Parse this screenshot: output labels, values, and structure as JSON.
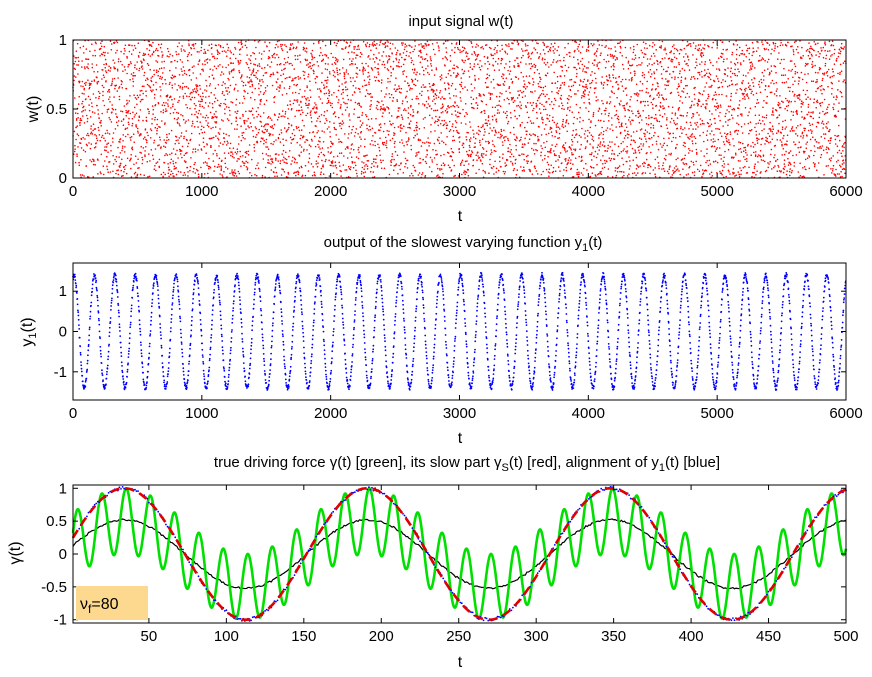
{
  "chart_data": [
    {
      "type": "scatter",
      "title": "input signal w(t)",
      "xlabel": "t",
      "ylabel": "w(t)",
      "xlim": [
        0,
        6000
      ],
      "ylim": [
        0,
        1
      ],
      "xticks": [
        0,
        1000,
        2000,
        3000,
        4000,
        5000,
        6000
      ],
      "yticks": [
        0,
        0.5,
        1
      ],
      "series": [
        {
          "name": "w(t)",
          "color": "#ff0000",
          "marker": "dot",
          "n_points": 6000,
          "description": "uniform noise in [0,1]",
          "value_range": [
            0,
            1
          ]
        }
      ]
    },
    {
      "type": "scatter",
      "title_parts": [
        "output of the slowest varying function y",
        "1",
        "(t)"
      ],
      "xlabel": "t",
      "ylabel_parts": [
        "y",
        "1",
        "(t)"
      ],
      "xlim": [
        0,
        6000
      ],
      "ylim": [
        -1.7,
        1.7
      ],
      "xticks": [
        0,
        1000,
        2000,
        3000,
        4000,
        5000,
        6000
      ],
      "yticks": [
        -1,
        0,
        1
      ],
      "series": [
        {
          "name": "y1(t)",
          "color": "#0000ff",
          "marker": "dot",
          "n_points": 6000,
          "amplitude": 1.4,
          "cycles": 38,
          "phase_t0_deg": 70
        }
      ]
    },
    {
      "type": "line",
      "title_parts": [
        "true driving force γ(t) [green], its slow part γ",
        "S",
        "(t) [red], alignment of y",
        "1",
        "(t) [blue]"
      ],
      "xlabel": "t",
      "ylabel": "γ(t)",
      "xlim": [
        1,
        500
      ],
      "ylim": [
        -1.05,
        1.05
      ],
      "xticks": [
        50,
        100,
        150,
        200,
        250,
        300,
        350,
        400,
        450,
        500
      ],
      "yticks": [
        -1,
        -0.5,
        0,
        0.5,
        1
      ],
      "slow_period": 157,
      "slow_peaks_at": [
        34,
        191,
        348
      ],
      "series": [
        {
          "name": "true driving force γ(t)",
          "color": "#00e000",
          "style": "solid",
          "slow_amplitude": 1.0,
          "fast_period": 15.7,
          "fast_amplitude": 0.5
        },
        {
          "name": "slow part γS(t)",
          "color": "#e00000",
          "style": "dashed",
          "amplitude": 1.0
        },
        {
          "name": "alignment of y1(t)",
          "color": "#0000ff",
          "style": "dotted",
          "amplitude": 1.0
        },
        {
          "name": "black curve",
          "color": "#000000",
          "style": "solid",
          "amplitude": 0.52
        }
      ],
      "annotation": {
        "base": "ν",
        "sub": "f",
        "rest": "=80",
        "bg": "#fcd98f"
      }
    }
  ]
}
